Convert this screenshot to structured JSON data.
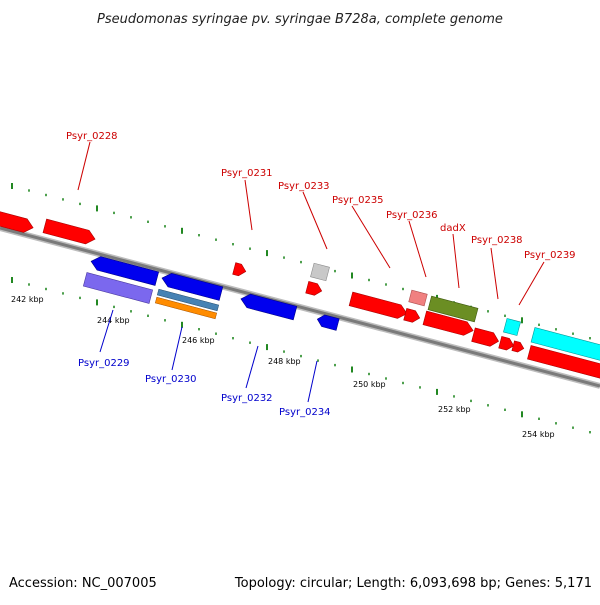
{
  "title": "Pseudomonas syringae pv. syringae B728a, complete genome",
  "footer": {
    "accession": "Accession: NC_007005",
    "summary": "Topology: circular; Length: 6,093,698 bp; Genes: 5,171"
  },
  "colors": {
    "forward_label": "#cc0000",
    "reverse_label": "#0000cc",
    "forward_gene": "#ff0000",
    "reverse_gene": "#0000ee",
    "backbone": "#7a7a7a",
    "tick": "#228822"
  },
  "scale": {
    "unit": "kbp",
    "major_ticks": [
      {
        "kbp": 242,
        "label": "242 kbp"
      },
      {
        "kbp": 244,
        "label": "244 kbp"
      },
      {
        "kbp": 246,
        "label": "246 kbp"
      },
      {
        "kbp": 248,
        "label": "248 kbp"
      },
      {
        "kbp": 250,
        "label": "250 kbp"
      },
      {
        "kbp": 252,
        "label": "252 kbp"
      },
      {
        "kbp": 254,
        "label": "254 kbp"
      }
    ]
  },
  "genes": [
    {
      "label": "Psyr_0228",
      "strand": "forward",
      "color": "#ff0000"
    },
    {
      "label": "Psyr_0229",
      "strand": "reverse",
      "color": "#0000ee"
    },
    {
      "label": "Psyr_0230",
      "strand": "reverse",
      "color": "#0000ee"
    },
    {
      "label": "Psyr_0231",
      "strand": "forward",
      "color": "#ff0000"
    },
    {
      "label": "Psyr_0232",
      "strand": "reverse",
      "color": "#0000ee"
    },
    {
      "label": "Psyr_0233",
      "strand": "forward",
      "color": "#c8c8c8"
    },
    {
      "label": "Psyr_0234",
      "strand": "reverse",
      "color": "#0000ee"
    },
    {
      "label": "Psyr_0235",
      "strand": "forward",
      "color": "#ff0000"
    },
    {
      "label": "Psyr_0236",
      "strand": "forward",
      "color": "#f08080"
    },
    {
      "label": "dadX",
      "strand": "forward",
      "color": "#6b8e23"
    },
    {
      "label": "Psyr_0238",
      "strand": "forward",
      "color": "#00ffff"
    },
    {
      "label": "Psyr_0239",
      "strand": "forward",
      "color": "#00ffff"
    }
  ]
}
